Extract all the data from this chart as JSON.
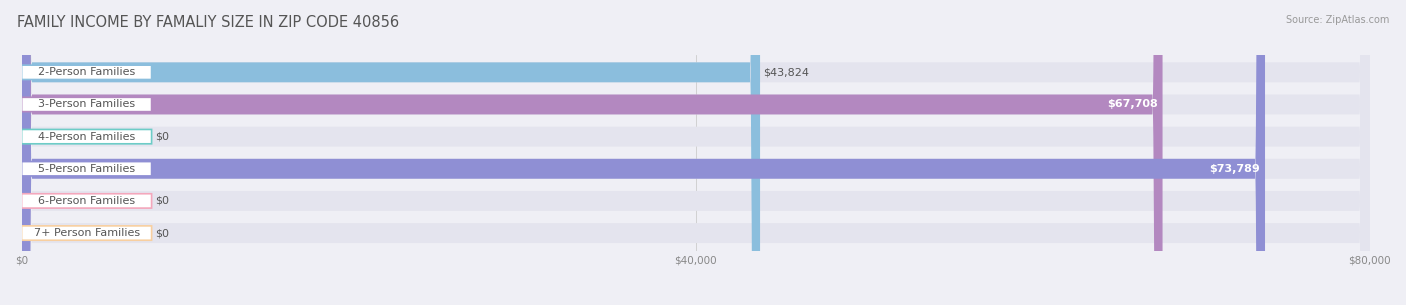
{
  "title": "FAMILY INCOME BY FAMALIY SIZE IN ZIP CODE 40856",
  "source": "Source: ZipAtlas.com",
  "categories": [
    "2-Person Families",
    "3-Person Families",
    "4-Person Families",
    "5-Person Families",
    "6-Person Families",
    "7+ Person Families"
  ],
  "values": [
    43824,
    67708,
    0,
    73789,
    0,
    0
  ],
  "bar_colors": [
    "#8bbedd",
    "#b388c0",
    "#6dccc7",
    "#8f8fd4",
    "#f4a7bc",
    "#f8cfa0"
  ],
  "track_color": "#e4e4ee",
  "xlim": [
    0,
    80000
  ],
  "xticks": [
    0,
    40000,
    80000
  ],
  "xtick_labels": [
    "$0",
    "$40,000",
    "$80,000"
  ],
  "background_color": "#efeff5",
  "bar_height": 0.62,
  "title_fontsize": 10.5,
  "label_fontsize": 8,
  "value_fontsize": 8,
  "value_inside_color": "white",
  "value_outside_color": "#555555"
}
